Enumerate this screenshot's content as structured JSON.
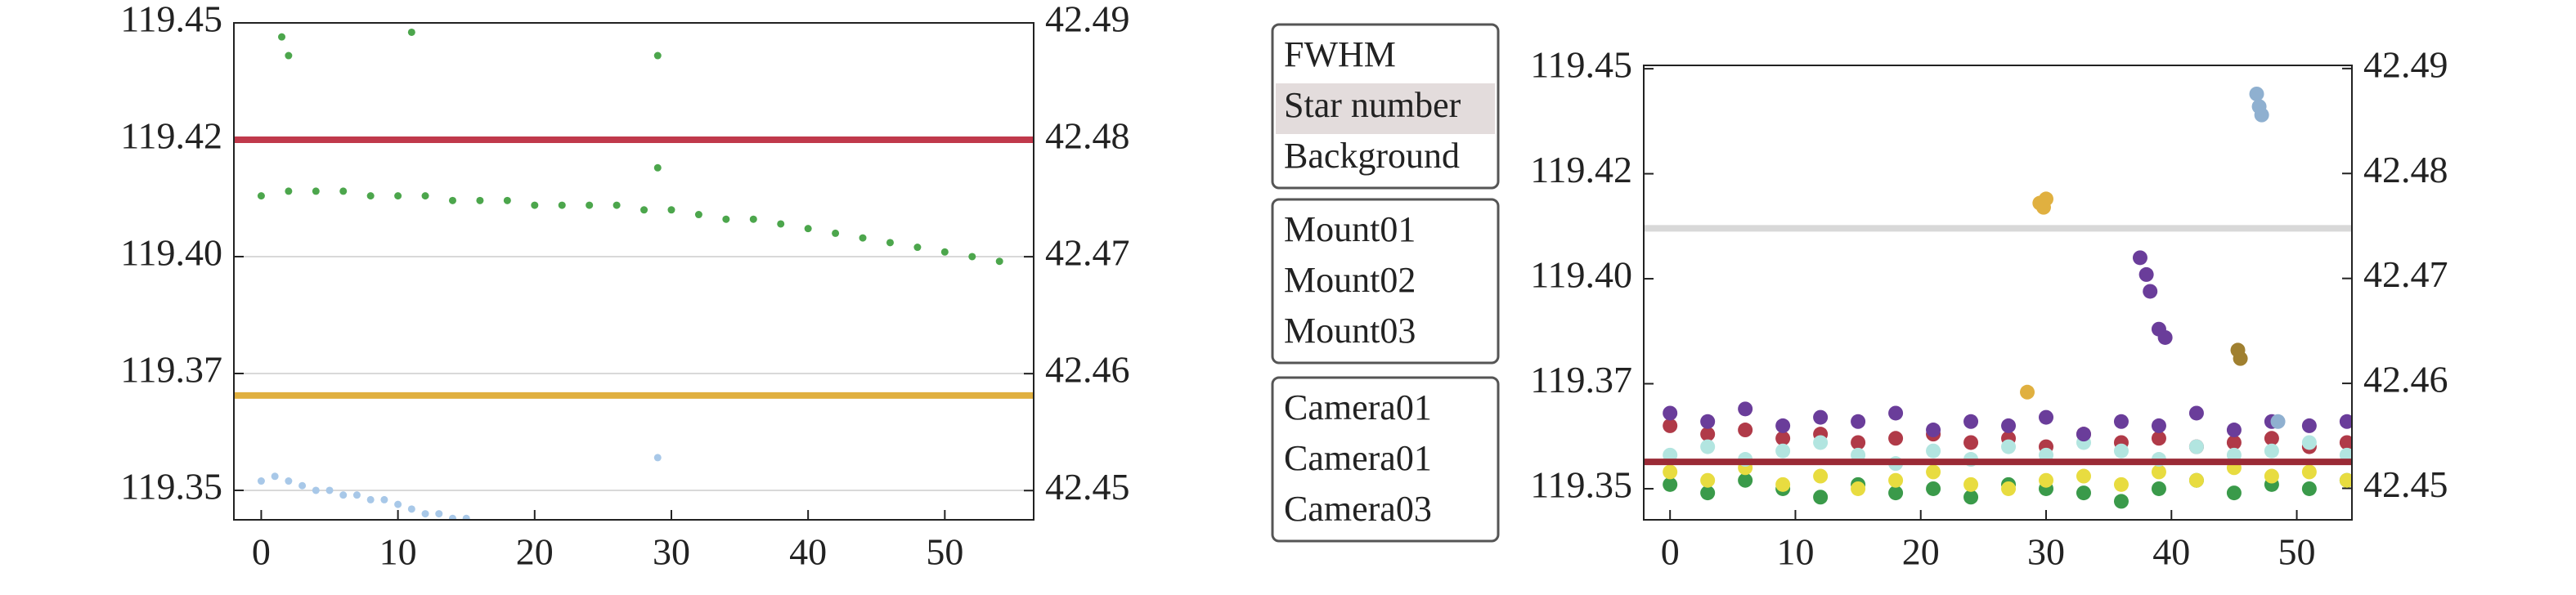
{
  "chart_data": [
    {
      "type": "scatter",
      "grid": true,
      "xlim": [
        -2,
        56.5
      ],
      "xticks": [
        0,
        10,
        20,
        30,
        40,
        50
      ],
      "ylim": [
        119.3437,
        119.45
      ],
      "yticks": [
        119.35,
        {
          "value": 119.375,
          "label": "119.37"
        },
        {
          "value": 119.4,
          "label": "119.40"
        },
        {
          "value": 119.425,
          "label": "119.42"
        },
        119.45
      ],
      "y2lim": [
        42.4475,
        42.49
      ],
      "y2ticks": [
        42.45,
        42.46,
        42.47,
        42.48,
        42.49
      ],
      "series": [
        {
          "mode": "line",
          "color": "#c0394b",
          "x": [
            -2,
            56.5
          ],
          "values": [
            119.425,
            119.425
          ]
        },
        {
          "mode": "line",
          "color": "#e0b040",
          "x": [
            -2,
            56.5
          ],
          "values": [
            119.3703,
            119.3703
          ]
        },
        {
          "mode": "markers",
          "color": "#4ca64c",
          "x": [
            0,
            2,
            4,
            6,
            8,
            10,
            12,
            14,
            16,
            18,
            20,
            22,
            24,
            26,
            28,
            30,
            32,
            34,
            36,
            38,
            40,
            42,
            44,
            46,
            48,
            50,
            52,
            54,
            1.5,
            2,
            11,
            29,
            29
          ],
          "values": [
            119.413,
            119.414,
            119.414,
            119.414,
            119.413,
            119.413,
            119.413,
            119.412,
            119.412,
            119.412,
            119.411,
            119.411,
            119.411,
            119.411,
            119.41,
            119.41,
            119.409,
            119.408,
            119.408,
            119.407,
            119.406,
            119.405,
            119.404,
            119.403,
            119.402,
            119.401,
            119.4,
            119.399,
            119.447,
            119.443,
            119.448,
            119.443,
            119.419
          ]
        },
        {
          "mode": "markers",
          "color": "#a8c8e8",
          "x": [
            0,
            1,
            2,
            3,
            4,
            5,
            6,
            7,
            8,
            9,
            10,
            11,
            12,
            13,
            14,
            15,
            29
          ],
          "values": [
            119.352,
            119.353,
            119.352,
            119.351,
            119.35,
            119.35,
            119.349,
            119.349,
            119.348,
            119.348,
            119.347,
            119.346,
            119.345,
            119.345,
            119.344,
            119.344,
            119.357
          ]
        }
      ]
    },
    {
      "type": "scatter",
      "grid": false,
      "xlim": [
        -2.1,
        54.4
      ],
      "xticks": [
        0,
        10,
        20,
        30,
        40,
        50
      ],
      "ylim": [
        119.3426,
        119.4508
      ],
      "yticks": [
        119.35,
        {
          "value": 119.375,
          "label": "119.37"
        },
        {
          "value": 119.4,
          "label": "119.40"
        },
        {
          "value": 119.425,
          "label": "119.42"
        },
        119.45
      ],
      "y2lim": [
        42.447,
        42.4903
      ],
      "y2ticks": [
        42.45,
        42.46,
        42.47,
        42.48,
        42.49
      ],
      "legend_groups": [
        {
          "items": [
            "FWHM",
            "Star number",
            "Background"
          ],
          "selected": 1
        },
        {
          "items": [
            "Mount01",
            "Mount02",
            "Mount03"
          ]
        },
        {
          "items": [
            "Camera01",
            "Camera01",
            "Camera03"
          ]
        }
      ],
      "series": [
        {
          "mode": "line",
          "color": "#d8d8d8",
          "x": [
            -2.1,
            54.4
          ],
          "values": [
            119.412,
            119.412
          ]
        },
        {
          "mode": "markers",
          "color": "#b03a48",
          "x": [
            0,
            3,
            6,
            9,
            12,
            15,
            18,
            21,
            24,
            27,
            30,
            33,
            36,
            39,
            42,
            45,
            48,
            51,
            54
          ],
          "values": [
            119.365,
            119.363,
            119.364,
            119.362,
            119.363,
            119.361,
            119.362,
            119.363,
            119.361,
            119.362,
            119.36,
            119.363,
            119.361,
            119.362,
            119.36,
            119.361,
            119.362,
            119.36,
            119.361
          ]
        },
        {
          "mode": "markers",
          "color": "#3a9a4a",
          "x": [
            0,
            3,
            6,
            9,
            12,
            15,
            18,
            21,
            24,
            27,
            30,
            33,
            36,
            39,
            42,
            45,
            48,
            51,
            54
          ],
          "values": [
            119.351,
            119.349,
            119.352,
            119.35,
            119.348,
            119.351,
            119.349,
            119.35,
            119.348,
            119.351,
            119.35,
            119.349,
            119.347,
            119.35,
            119.352,
            119.349,
            119.351,
            119.35,
            119.352
          ]
        },
        {
          "mode": "markers",
          "color": "#e8dc40",
          "x": [
            0,
            3,
            6,
            9,
            12,
            15,
            18,
            21,
            24,
            27,
            30,
            33,
            36,
            39,
            42,
            45,
            48,
            51,
            54
          ],
          "values": [
            119.354,
            119.352,
            119.355,
            119.351,
            119.353,
            119.35,
            119.352,
            119.354,
            119.351,
            119.35,
            119.352,
            119.353,
            119.351,
            119.354,
            119.352,
            119.355,
            119.353,
            119.354,
            119.352
          ]
        },
        {
          "mode": "markers",
          "color": "#b2e5e0",
          "x": [
            0,
            3,
            6,
            9,
            12,
            15,
            18,
            21,
            24,
            27,
            30,
            33,
            36,
            39,
            42,
            45,
            48,
            51,
            54
          ],
          "values": [
            119.358,
            119.36,
            119.357,
            119.359,
            119.361,
            119.358,
            119.356,
            119.359,
            119.357,
            119.36,
            119.358,
            119.361,
            119.359,
            119.357,
            119.36,
            119.358,
            119.359,
            119.361,
            119.358
          ]
        },
        {
          "mode": "markers",
          "color": "#6a3d9a",
          "x": [
            0,
            3,
            6,
            9,
            12,
            15,
            18,
            21,
            24,
            27,
            30,
            33,
            36,
            39,
            42,
            45,
            48,
            51,
            54,
            37.5,
            38,
            38.3,
            39,
            39.5
          ],
          "values": [
            119.368,
            119.366,
            119.369,
            119.365,
            119.367,
            119.366,
            119.368,
            119.364,
            119.366,
            119.365,
            119.367,
            119.363,
            119.366,
            119.365,
            119.368,
            119.364,
            119.366,
            119.365,
            119.366,
            119.405,
            119.401,
            119.397,
            119.388,
            119.386
          ]
        },
        {
          "mode": "markers",
          "color": "#e0b040",
          "x": [
            28.5,
            29.5,
            29.8,
            30
          ],
          "values": [
            119.373,
            119.418,
            119.417,
            119.419
          ]
        },
        {
          "mode": "markers",
          "color": "#8fb0d0",
          "x": [
            46.8,
            47,
            47.2,
            48.5
          ],
          "values": [
            119.444,
            119.441,
            119.439,
            119.366
          ]
        },
        {
          "mode": "markers",
          "color": "#a08030",
          "x": [
            45.3,
            45.5
          ],
          "values": [
            119.383,
            119.381
          ]
        },
        {
          "mode": "line",
          "color": "#9a2a36",
          "x": [
            -2.1,
            54.4
          ],
          "values": [
            119.3564,
            119.3564
          ]
        }
      ]
    }
  ]
}
